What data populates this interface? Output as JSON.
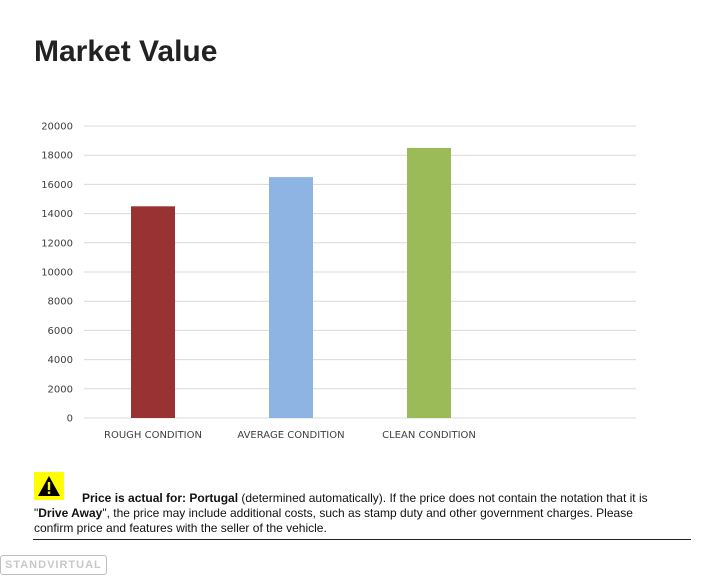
{
  "page": {
    "title": "Market Value"
  },
  "chart_data": {
    "type": "bar",
    "title": "",
    "xlabel": "",
    "ylabel": "",
    "categories": [
      "ROUGH CONDITION",
      "AVERAGE CONDITION",
      "CLEAN CONDITION"
    ],
    "values": [
      14500,
      16500,
      18500
    ],
    "colors": [
      "#993333",
      "#8db4e2",
      "#9bbb59"
    ],
    "ylim": [
      0,
      20000
    ],
    "yticks": [
      0,
      2000,
      4000,
      6000,
      8000,
      10000,
      12000,
      14000,
      16000,
      18000,
      20000
    ],
    "grid": true,
    "legend": "none"
  },
  "notice": {
    "icon": "warning-icon",
    "icon_color": "#ffff00",
    "lead_bold": "Price is actual for: Portugal",
    "text_1": " (determined automatically). If the price does not contain the notation that it is \"",
    "drive_away": "Drive Away",
    "text_2": "\", the price may include additional costs, such as stamp duty and other government charges. Please confirm price and features with the seller of the vehicle."
  },
  "watermark": {
    "text": "STANDVIRTUAL"
  }
}
